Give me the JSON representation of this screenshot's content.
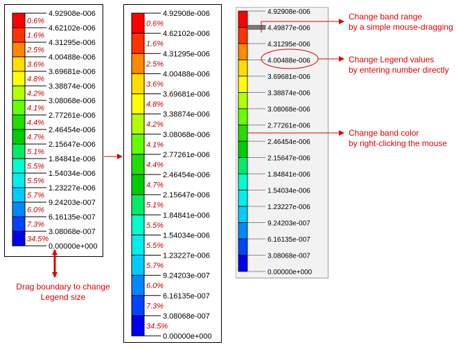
{
  "values": [
    "4.92908e-006",
    "4.62102e-006",
    "4.31295e-006",
    "4.00488e-006",
    "3.69681e-006",
    "3.38874e-006",
    "3.08068e-006",
    "2.77261e-006",
    "2.46454e-006",
    "2.15647e-006",
    "1.84841e-006",
    "1.54034e-006",
    "1.23227e-006",
    "9.24203e-007",
    "6.16135e-007",
    "3.08068e-007",
    "0.00000e+000"
  ],
  "percents": [
    "0.6%",
    "1.6%",
    "2.5%",
    "3.6%",
    "4.8%",
    "4.2%",
    "4.1%",
    "4.4%",
    "4.7%",
    "5.1%",
    "5.5%",
    "5.5%",
    "5.7%",
    "6.0%",
    "7.3%",
    "34.5%"
  ],
  "band_colors": [
    "#ff0000",
    "#ff3300",
    "#ff8800",
    "#ffdd00",
    "#ffff00",
    "#b2ff00",
    "#66ff00",
    "#22dd00",
    "#00cc00",
    "#00ee66",
    "#00ffcc",
    "#00eeee",
    "#00ccff",
    "#0088ff",
    "#0044ff",
    "#0000ee"
  ],
  "edit_legend": {
    "values": [
      "4.92908e-006",
      "4.49877e-006",
      "4.31295e-006",
      "4.00488e-006",
      "3.69681e-006",
      "3.38874e-006",
      "3.08068e-006",
      "2.77261e-006",
      "2.46454e-006",
      "2.15647e-006",
      "1.84841e-006",
      "1.54034e-006",
      "1.23227e-006",
      "9.24203e-007",
      "6.16135e-007",
      "3.08068e-007",
      "0.00000e+000"
    ],
    "editing_value": "4.00488e-006"
  },
  "annotations": {
    "drag_boundary": "Drag boundary to change\nLegend size",
    "band_range": "Change band range\nby a simple mouse-dragging",
    "legend_values": "Change Legend values\nby entering number directly",
    "band_color": "Change band color\nby right-clicking the mouse"
  },
  "accent_color": "#e00000"
}
